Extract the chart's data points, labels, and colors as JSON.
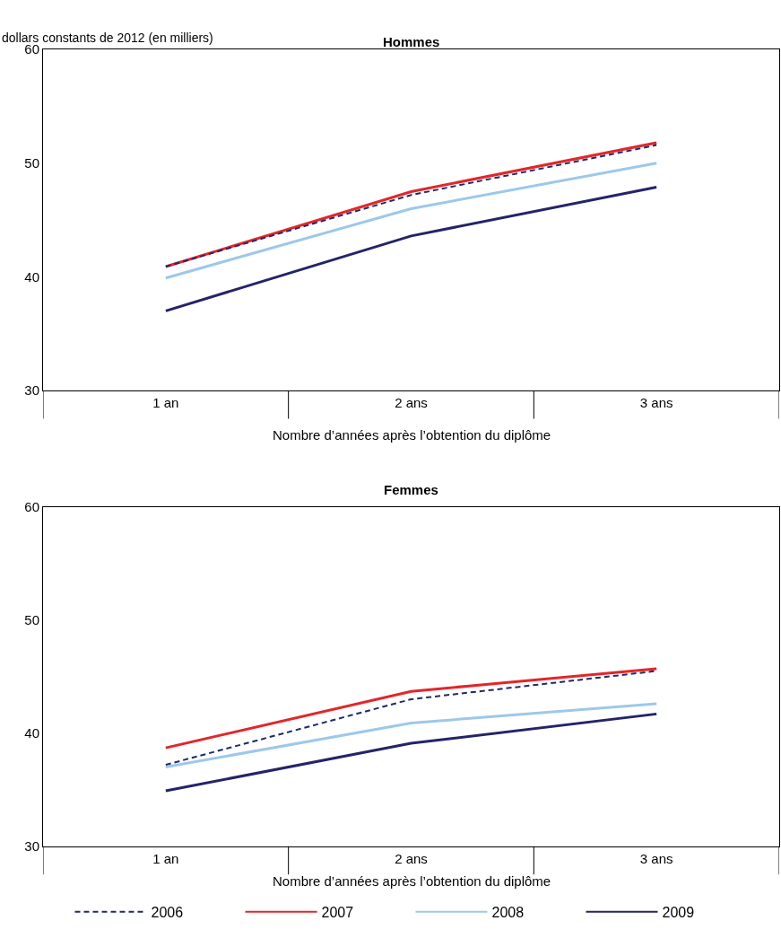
{
  "chart_data": [
    {
      "type": "line",
      "title": "Hommes",
      "ylabel": "dollars constants de 2012 (en milliers)",
      "xlabel": "Nombre d’années après l’obtention du diplôme",
      "categories": [
        "1 an",
        "2 ans",
        "3 ans"
      ],
      "ylim": [
        30,
        60
      ],
      "yticks": [
        30,
        40,
        50,
        60
      ],
      "grid": false,
      "legend": "bottom",
      "marker": "none",
      "series": [
        {
          "name": "2006",
          "color": "#1f2a6e",
          "line_style": "dashed",
          "values": [
            40.9,
            47.2,
            51.6
          ]
        },
        {
          "name": "2007",
          "color": "#e3262a",
          "line_style": "solid",
          "values": [
            40.9,
            47.5,
            51.8
          ]
        },
        {
          "name": "2008",
          "color": "#9dc8ea",
          "line_style": "solid",
          "values": [
            39.9,
            46.0,
            50.0
          ]
        },
        {
          "name": "2009",
          "color": "#232469",
          "line_style": "solid",
          "values": [
            37.0,
            43.6,
            47.9
          ]
        }
      ]
    },
    {
      "type": "line",
      "title": "Femmes",
      "xlabel": "Nombre d’années après l’obtention du diplôme",
      "categories": [
        "1 an",
        "2 ans",
        "3 ans"
      ],
      "ylim": [
        30,
        60
      ],
      "yticks": [
        30,
        40,
        50,
        60
      ],
      "grid": false,
      "legend": "bottom",
      "marker": "none",
      "series": [
        {
          "name": "2006",
          "color": "#1f2a6e",
          "line_style": "dashed",
          "values": [
            37.2,
            43.0,
            45.5
          ]
        },
        {
          "name": "2007",
          "color": "#e3262a",
          "line_style": "solid",
          "values": [
            38.7,
            43.7,
            45.7
          ]
        },
        {
          "name": "2008",
          "color": "#9dc8ea",
          "line_style": "solid",
          "values": [
            37.0,
            40.9,
            42.6
          ]
        },
        {
          "name": "2009",
          "color": "#232469",
          "line_style": "solid",
          "values": [
            34.9,
            39.1,
            41.7
          ]
        }
      ]
    }
  ]
}
